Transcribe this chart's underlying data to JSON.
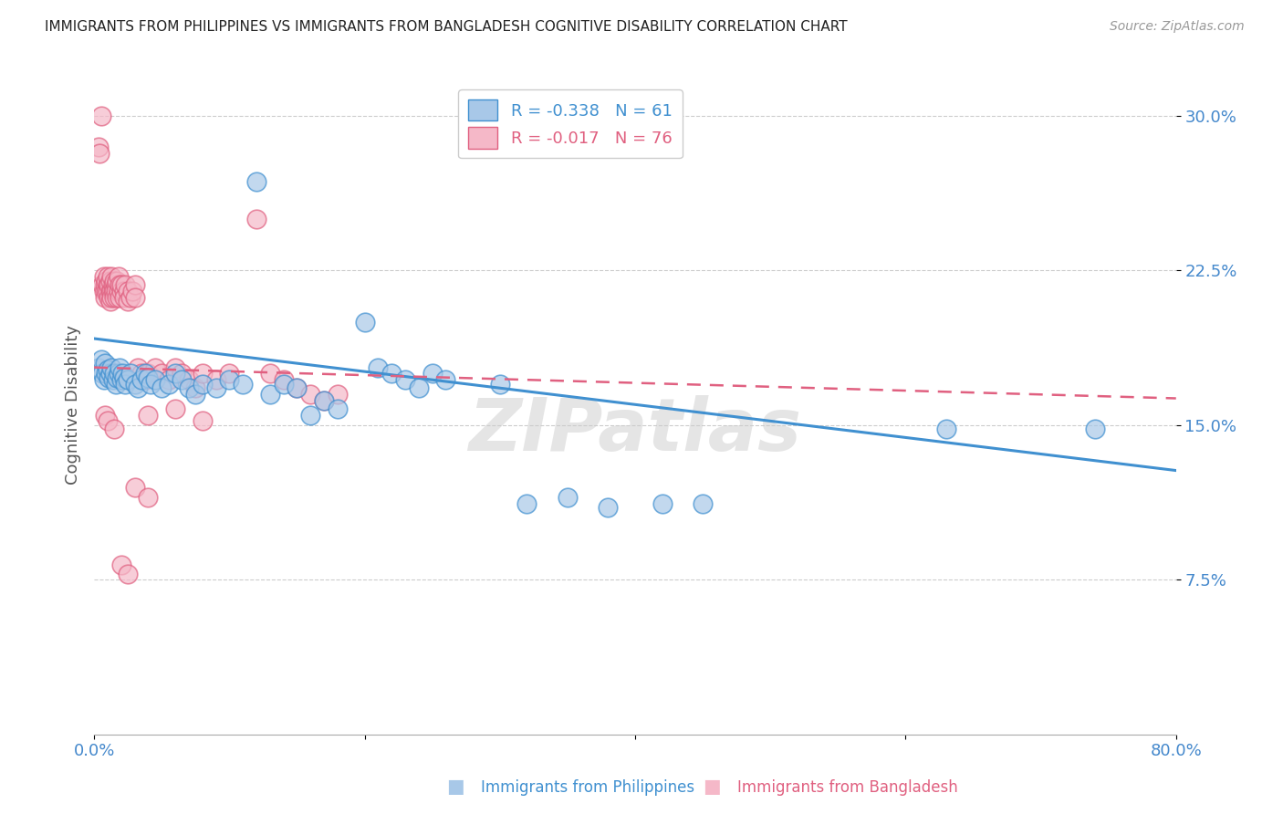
{
  "title": "IMMIGRANTS FROM PHILIPPINES VS IMMIGRANTS FROM BANGLADESH COGNITIVE DISABILITY CORRELATION CHART",
  "source": "Source: ZipAtlas.com",
  "ylabel": "Cognitive Disability",
  "xlim": [
    0.0,
    0.8
  ],
  "ylim": [
    0.0,
    0.32
  ],
  "legend_r_blue": "R = -0.338",
  "legend_n_blue": "N = 61",
  "legend_r_pink": "R = -0.017",
  "legend_n_pink": "N = 76",
  "blue_color": "#a8c8e8",
  "pink_color": "#f5b8c8",
  "trendline_blue_color": "#4090d0",
  "trendline_pink_color": "#e06080",
  "axis_label_color": "#4488cc",
  "title_color": "#222222",
  "watermark": "ZIPatlas",
  "blue_scatter": [
    [
      0.003,
      0.178
    ],
    [
      0.005,
      0.182
    ],
    [
      0.006,
      0.175
    ],
    [
      0.007,
      0.172
    ],
    [
      0.008,
      0.18
    ],
    [
      0.009,
      0.175
    ],
    [
      0.01,
      0.177
    ],
    [
      0.011,
      0.173
    ],
    [
      0.012,
      0.175
    ],
    [
      0.013,
      0.178
    ],
    [
      0.014,
      0.172
    ],
    [
      0.015,
      0.175
    ],
    [
      0.016,
      0.17
    ],
    [
      0.017,
      0.173
    ],
    [
      0.018,
      0.175
    ],
    [
      0.019,
      0.178
    ],
    [
      0.02,
      0.172
    ],
    [
      0.021,
      0.175
    ],
    [
      0.022,
      0.173
    ],
    [
      0.023,
      0.17
    ],
    [
      0.025,
      0.172
    ],
    [
      0.027,
      0.175
    ],
    [
      0.03,
      0.17
    ],
    [
      0.032,
      0.168
    ],
    [
      0.035,
      0.172
    ],
    [
      0.038,
      0.175
    ],
    [
      0.04,
      0.173
    ],
    [
      0.042,
      0.17
    ],
    [
      0.045,
      0.172
    ],
    [
      0.05,
      0.168
    ],
    [
      0.055,
      0.17
    ],
    [
      0.06,
      0.175
    ],
    [
      0.065,
      0.172
    ],
    [
      0.07,
      0.168
    ],
    [
      0.075,
      0.165
    ],
    [
      0.08,
      0.17
    ],
    [
      0.09,
      0.168
    ],
    [
      0.1,
      0.172
    ],
    [
      0.11,
      0.17
    ],
    [
      0.12,
      0.268
    ],
    [
      0.13,
      0.165
    ],
    [
      0.14,
      0.17
    ],
    [
      0.15,
      0.168
    ],
    [
      0.16,
      0.155
    ],
    [
      0.17,
      0.162
    ],
    [
      0.18,
      0.158
    ],
    [
      0.2,
      0.2
    ],
    [
      0.21,
      0.178
    ],
    [
      0.22,
      0.175
    ],
    [
      0.23,
      0.172
    ],
    [
      0.24,
      0.168
    ],
    [
      0.25,
      0.175
    ],
    [
      0.26,
      0.172
    ],
    [
      0.3,
      0.17
    ],
    [
      0.32,
      0.112
    ],
    [
      0.35,
      0.115
    ],
    [
      0.38,
      0.11
    ],
    [
      0.42,
      0.112
    ],
    [
      0.45,
      0.112
    ],
    [
      0.63,
      0.148
    ],
    [
      0.74,
      0.148
    ]
  ],
  "pink_scatter": [
    [
      0.003,
      0.285
    ],
    [
      0.004,
      0.282
    ],
    [
      0.005,
      0.3
    ],
    [
      0.006,
      0.218
    ],
    [
      0.007,
      0.215
    ],
    [
      0.007,
      0.222
    ],
    [
      0.008,
      0.218
    ],
    [
      0.008,
      0.212
    ],
    [
      0.009,
      0.215
    ],
    [
      0.009,
      0.22
    ],
    [
      0.01,
      0.218
    ],
    [
      0.01,
      0.222
    ],
    [
      0.01,
      0.215
    ],
    [
      0.011,
      0.218
    ],
    [
      0.011,
      0.212
    ],
    [
      0.012,
      0.215
    ],
    [
      0.012,
      0.22
    ],
    [
      0.012,
      0.21
    ],
    [
      0.013,
      0.215
    ],
    [
      0.013,
      0.222
    ],
    [
      0.013,
      0.212
    ],
    [
      0.014,
      0.218
    ],
    [
      0.014,
      0.215
    ],
    [
      0.015,
      0.22
    ],
    [
      0.015,
      0.215
    ],
    [
      0.015,
      0.212
    ],
    [
      0.016,
      0.218
    ],
    [
      0.016,
      0.215
    ],
    [
      0.017,
      0.22
    ],
    [
      0.017,
      0.212
    ],
    [
      0.018,
      0.215
    ],
    [
      0.018,
      0.222
    ],
    [
      0.019,
      0.218
    ],
    [
      0.019,
      0.212
    ],
    [
      0.02,
      0.215
    ],
    [
      0.02,
      0.218
    ],
    [
      0.022,
      0.215
    ],
    [
      0.022,
      0.212
    ],
    [
      0.023,
      0.218
    ],
    [
      0.025,
      0.215
    ],
    [
      0.025,
      0.21
    ],
    [
      0.027,
      0.212
    ],
    [
      0.028,
      0.215
    ],
    [
      0.03,
      0.218
    ],
    [
      0.03,
      0.212
    ],
    [
      0.032,
      0.178
    ],
    [
      0.035,
      0.175
    ],
    [
      0.038,
      0.172
    ],
    [
      0.04,
      0.175
    ],
    [
      0.045,
      0.178
    ],
    [
      0.05,
      0.175
    ],
    [
      0.055,
      0.172
    ],
    [
      0.06,
      0.178
    ],
    [
      0.065,
      0.175
    ],
    [
      0.07,
      0.172
    ],
    [
      0.075,
      0.168
    ],
    [
      0.08,
      0.175
    ],
    [
      0.09,
      0.172
    ],
    [
      0.1,
      0.175
    ],
    [
      0.12,
      0.25
    ],
    [
      0.13,
      0.175
    ],
    [
      0.14,
      0.172
    ],
    [
      0.15,
      0.168
    ],
    [
      0.16,
      0.165
    ],
    [
      0.17,
      0.162
    ],
    [
      0.18,
      0.165
    ],
    [
      0.04,
      0.155
    ],
    [
      0.06,
      0.158
    ],
    [
      0.08,
      0.152
    ],
    [
      0.02,
      0.082
    ],
    [
      0.025,
      0.078
    ],
    [
      0.03,
      0.12
    ],
    [
      0.04,
      0.115
    ],
    [
      0.008,
      0.155
    ],
    [
      0.01,
      0.152
    ],
    [
      0.015,
      0.148
    ]
  ],
  "blue_trend_x": [
    0.0,
    0.8
  ],
  "blue_trend_y": [
    0.192,
    0.128
  ],
  "pink_trend_x": [
    0.0,
    0.8
  ],
  "pink_trend_y": [
    0.178,
    0.163
  ],
  "grid_color": "#cccccc",
  "background_color": "#ffffff"
}
